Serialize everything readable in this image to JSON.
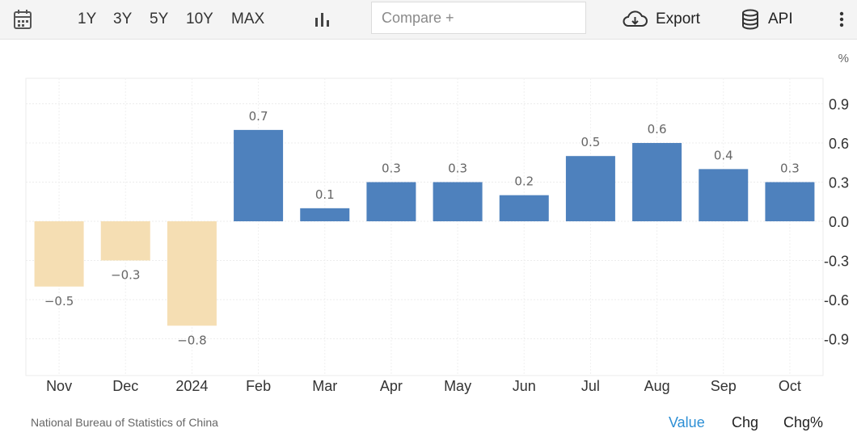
{
  "toolbar": {
    "ranges": [
      "1Y",
      "3Y",
      "5Y",
      "10Y",
      "MAX"
    ],
    "compare_placeholder": "Compare +",
    "export_label": "Export",
    "api_label": "API"
  },
  "footer": {
    "source": "National Bureau of Statistics of China",
    "modes": [
      "Value",
      "Chg",
      "Chg%"
    ],
    "active_mode": "Value"
  },
  "colors": {
    "positive": "#4e81bd",
    "negative": "#f5deb3",
    "active_mode": "#2d8fd5"
  },
  "chart_data": {
    "type": "bar",
    "categories": [
      "Nov",
      "Dec",
      "2024",
      "Feb",
      "Mar",
      "Apr",
      "May",
      "Jun",
      "Jul",
      "Aug",
      "Sep",
      "Oct"
    ],
    "values": [
      -0.5,
      -0.3,
      -0.8,
      0.7,
      0.1,
      0.3,
      0.3,
      0.2,
      0.5,
      0.6,
      0.4,
      0.3
    ],
    "value_labels": [
      "−0.5",
      "−0.3",
      "−0.8",
      "0.7",
      "0.1",
      "0.3",
      "0.3",
      "0.2",
      "0.5",
      "0.6",
      "0.4",
      "0.3"
    ],
    "unit": "%",
    "y_ticks": [
      0.9,
      0.6,
      0.3,
      0.0,
      -0.3,
      -0.6,
      -0.9
    ],
    "y_tick_labels": [
      "0.9",
      "0.6",
      "0.3",
      "0.0",
      "-0.3",
      "-0.6",
      "-0.9"
    ],
    "ylim": [
      -1.2,
      1.1
    ],
    "grid": true,
    "y_axis_side": "right"
  }
}
